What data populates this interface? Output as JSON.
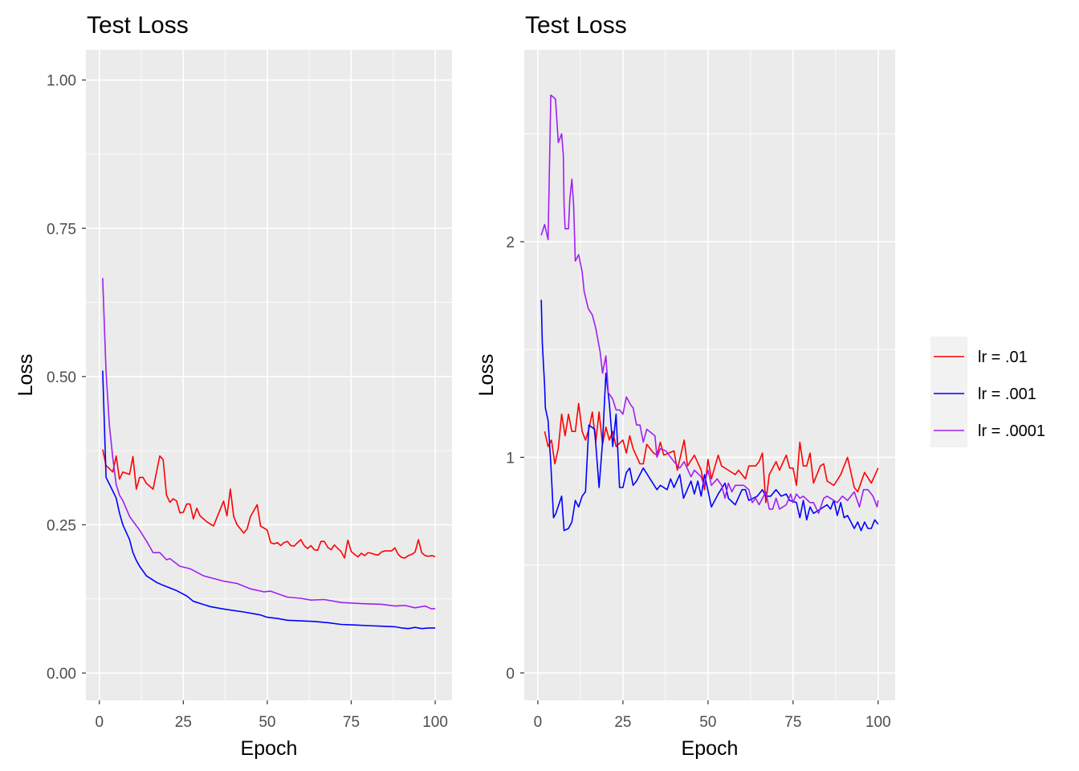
{
  "legend": {
    "items": [
      {
        "label": "lr = .01",
        "color": "#FF0000"
      },
      {
        "label": "lr = .001",
        "color": "#0000FF"
      },
      {
        "label": "lr = .0001",
        "color": "#A020F0"
      }
    ]
  },
  "chart_data": [
    {
      "type": "line",
      "title": "Test Loss",
      "xlabel": "Epoch",
      "ylabel": "Loss",
      "xlim": [
        -4,
        105
      ],
      "ylim": [
        -0.046,
        1.051
      ],
      "xticks": [
        0,
        25,
        50,
        75,
        100
      ],
      "xtick_labels": [
        "0",
        "25",
        "50",
        "75",
        "100"
      ],
      "yticks": [
        0,
        0.25,
        0.5,
        0.75,
        1.0
      ],
      "ytick_labels": [
        "0.00",
        "0.25",
        "0.50",
        "0.75",
        "1.00"
      ],
      "grid": true,
      "legend": "none",
      "series": [
        {
          "name": "lr = .01",
          "color": "#FF0000",
          "x": [
            1,
            2,
            4,
            5,
            6,
            7,
            9,
            10,
            11,
            12,
            13,
            14,
            16,
            18,
            19,
            20,
            21,
            22,
            23,
            24,
            25,
            26,
            27,
            28,
            29,
            30,
            32,
            34,
            37,
            38,
            39,
            40,
            41,
            43,
            44,
            45,
            47,
            48,
            50,
            51,
            52,
            53,
            54,
            55,
            56,
            57,
            58,
            59,
            60,
            61,
            62,
            63,
            64,
            65,
            66,
            67,
            68,
            69,
            70,
            71,
            72,
            73,
            74,
            75,
            76,
            77,
            78,
            79,
            80,
            81,
            82,
            83,
            84,
            85,
            86,
            87,
            88,
            89,
            90,
            91,
            92,
            93,
            94,
            95,
            96,
            97,
            98,
            99,
            100
          ],
          "y": [
            0.377,
            0.35,
            0.339,
            0.366,
            0.327,
            0.339,
            0.335,
            0.365,
            0.31,
            0.33,
            0.33,
            0.32,
            0.31,
            0.366,
            0.36,
            0.3,
            0.288,
            0.294,
            0.29,
            0.27,
            0.271,
            0.285,
            0.285,
            0.26,
            0.278,
            0.265,
            0.255,
            0.248,
            0.29,
            0.265,
            0.31,
            0.264,
            0.25,
            0.236,
            0.243,
            0.264,
            0.284,
            0.248,
            0.241,
            0.22,
            0.218,
            0.22,
            0.215,
            0.22,
            0.222,
            0.215,
            0.214,
            0.22,
            0.225,
            0.215,
            0.21,
            0.215,
            0.208,
            0.207,
            0.222,
            0.222,
            0.212,
            0.208,
            0.216,
            0.21,
            0.205,
            0.194,
            0.224,
            0.205,
            0.2,
            0.196,
            0.202,
            0.198,
            0.203,
            0.202,
            0.2,
            0.199,
            0.204,
            0.206,
            0.206,
            0.206,
            0.211,
            0.2,
            0.195,
            0.194,
            0.198,
            0.2,
            0.204,
            0.225,
            0.203,
            0.198,
            0.197,
            0.198,
            0.196
          ]
        },
        {
          "name": "lr = .001",
          "color": "#0000FF",
          "x": [
            1,
            2,
            4,
            5,
            6,
            7,
            9,
            10,
            11,
            12,
            14,
            17,
            19,
            23,
            26,
            28,
            33,
            37,
            43,
            48,
            50,
            53,
            56,
            60,
            64,
            68,
            72,
            76,
            80,
            84,
            88,
            90,
            92,
            94,
            96,
            98,
            100
          ],
          "y": [
            0.51,
            0.33,
            0.307,
            0.295,
            0.27,
            0.25,
            0.225,
            0.203,
            0.19,
            0.18,
            0.164,
            0.153,
            0.148,
            0.139,
            0.13,
            0.121,
            0.112,
            0.108,
            0.103,
            0.098,
            0.094,
            0.092,
            0.089,
            0.088,
            0.087,
            0.085,
            0.082,
            0.081,
            0.08,
            0.079,
            0.078,
            0.076,
            0.075,
            0.077,
            0.075,
            0.076,
            0.076
          ]
        },
        {
          "name": "lr = .0001",
          "color": "#A020F0",
          "x": [
            1,
            2,
            3,
            4,
            5,
            6,
            7,
            9,
            12,
            14,
            16,
            18,
            20,
            21,
            24,
            27,
            31,
            37,
            41,
            45,
            49,
            51,
            56,
            60,
            63,
            67,
            72,
            78,
            84,
            88,
            91,
            94,
            97,
            99,
            100
          ],
          "y": [
            0.666,
            0.508,
            0.417,
            0.363,
            0.318,
            0.3,
            0.291,
            0.264,
            0.241,
            0.223,
            0.203,
            0.203,
            0.191,
            0.193,
            0.18,
            0.176,
            0.164,
            0.155,
            0.151,
            0.142,
            0.137,
            0.138,
            0.128,
            0.126,
            0.123,
            0.124,
            0.119,
            0.117,
            0.116,
            0.113,
            0.114,
            0.11,
            0.113,
            0.108,
            0.109
          ]
        }
      ]
    },
    {
      "type": "line",
      "title": "Test Loss",
      "xlabel": "Epoch",
      "ylabel": "Loss",
      "xlim": [
        -4,
        105
      ],
      "ylim": [
        -0.127,
        2.89
      ],
      "xticks": [
        0,
        25,
        50,
        75,
        100
      ],
      "xtick_labels": [
        "0",
        "25",
        "50",
        "75",
        "100"
      ],
      "yticks": [
        0,
        1,
        2
      ],
      "ytick_labels": [
        "0",
        "1",
        "2"
      ],
      "grid": true,
      "legend": "right",
      "series": [
        {
          "name": "lr = .01",
          "color": "#FF0000",
          "x": [
            2,
            3,
            4,
            5,
            6,
            7,
            8,
            9,
            10,
            11,
            12,
            13,
            14,
            15,
            16,
            17,
            18,
            19,
            20,
            21,
            22,
            23,
            25,
            26,
            27,
            28,
            30,
            31,
            32,
            34,
            35,
            36,
            37,
            40,
            41,
            43,
            44,
            46,
            48,
            49,
            50,
            51,
            53,
            54,
            56,
            58,
            59,
            61,
            62,
            64,
            65,
            66,
            67,
            68,
            70,
            71,
            73,
            74,
            75,
            76,
            77,
            78,
            79,
            80,
            81,
            83,
            84,
            85,
            87,
            89,
            91,
            93,
            94,
            96,
            98,
            100
          ],
          "y": [
            1.12,
            1.05,
            1.08,
            0.97,
            1.04,
            1.2,
            1.1,
            1.2,
            1.12,
            1.12,
            1.25,
            1.12,
            1.08,
            1.13,
            1.21,
            1.07,
            1.21,
            1.06,
            1.14,
            1.08,
            1.12,
            1.05,
            1.08,
            1.02,
            1.1,
            1.04,
            0.97,
            0.97,
            1.06,
            1.02,
            1.01,
            1.07,
            1.01,
            1.03,
            0.94,
            1.08,
            0.96,
            1.01,
            0.94,
            0.85,
            0.99,
            0.9,
            1.01,
            0.96,
            0.94,
            0.92,
            0.94,
            0.9,
            0.96,
            0.96,
            0.98,
            1.02,
            0.79,
            0.92,
            0.98,
            0.94,
            1.01,
            0.95,
            0.95,
            0.87,
            1.07,
            0.96,
            0.96,
            1.02,
            0.88,
            0.96,
            0.97,
            0.89,
            0.87,
            0.92,
            1.0,
            0.86,
            0.84,
            0.93,
            0.88,
            0.95
          ]
        },
        {
          "name": "lr = .001",
          "color": "#0000FF",
          "x": [
            1,
            1.3,
            2,
            2.2,
            3,
            3.8,
            4.6,
            5.3,
            7,
            7.7,
            9,
            10,
            11,
            12,
            13,
            14,
            15,
            16.7,
            18,
            19,
            20,
            21,
            22,
            23,
            24,
            25,
            26,
            27,
            28,
            29,
            31,
            33,
            35,
            36,
            38,
            39,
            40,
            41.7,
            42.8,
            45,
            46,
            47,
            48,
            49,
            51,
            53,
            55,
            56,
            58,
            60,
            61,
            62,
            64.5,
            66,
            67,
            68.4,
            70,
            71.5,
            73,
            74,
            76,
            77,
            78,
            79,
            80,
            81,
            83,
            85,
            86,
            87,
            88,
            89,
            90,
            91,
            93,
            94,
            95,
            96,
            97,
            98,
            99,
            100
          ],
          "y": [
            1.73,
            1.53,
            1.33,
            1.23,
            1.17,
            0.97,
            0.72,
            0.74,
            0.82,
            0.66,
            0.67,
            0.7,
            0.8,
            0.77,
            0.82,
            0.84,
            1.15,
            1.13,
            0.86,
            1.07,
            1.39,
            1.25,
            1.05,
            1.2,
            0.86,
            0.86,
            0.93,
            0.95,
            0.87,
            0.89,
            0.95,
            0.9,
            0.85,
            0.87,
            0.85,
            0.9,
            0.86,
            0.92,
            0.81,
            0.89,
            0.83,
            0.89,
            0.82,
            0.92,
            0.77,
            0.83,
            0.88,
            0.81,
            0.78,
            0.85,
            0.85,
            0.8,
            0.82,
            0.85,
            0.82,
            0.82,
            0.85,
            0.82,
            0.83,
            0.8,
            0.79,
            0.72,
            0.8,
            0.71,
            0.77,
            0.74,
            0.76,
            0.78,
            0.76,
            0.8,
            0.73,
            0.79,
            0.72,
            0.73,
            0.67,
            0.7,
            0.66,
            0.7,
            0.67,
            0.67,
            0.71,
            0.69
          ]
        },
        {
          "name": "lr = .0001",
          "color": "#A020F0",
          "x": [
            1,
            2,
            3,
            3.8,
            4.6,
            5.2,
            6,
            7,
            7.5,
            7.7,
            8,
            9,
            9.4,
            10,
            10.5,
            11,
            12,
            13,
            13.6,
            14.8,
            16,
            17,
            18.3,
            19,
            20,
            20.7,
            22,
            23,
            24,
            25,
            26,
            27.4,
            28,
            29,
            30,
            31,
            32,
            34.4,
            35,
            36,
            37.6,
            40,
            41.7,
            43,
            45,
            46,
            48,
            48.8,
            50,
            51,
            52.7,
            54,
            55,
            56,
            57,
            58,
            60.5,
            62,
            63,
            64,
            65,
            67,
            68,
            69,
            70,
            71,
            73,
            74.3,
            75,
            76,
            77,
            78,
            80,
            81,
            82.5,
            84,
            85,
            88,
            89.5,
            91,
            93,
            94.5,
            95.7,
            97,
            98.5,
            99.7,
            100
          ],
          "y": [
            2.03,
            2.08,
            2.01,
            2.68,
            2.67,
            2.66,
            2.46,
            2.5,
            2.4,
            2.17,
            2.06,
            2.06,
            2.2,
            2.29,
            2.17,
            1.91,
            1.94,
            1.86,
            1.77,
            1.69,
            1.66,
            1.6,
            1.49,
            1.39,
            1.47,
            1.3,
            1.27,
            1.22,
            1.22,
            1.2,
            1.28,
            1.24,
            1.23,
            1.15,
            1.15,
            1.07,
            1.13,
            1.1,
            1.0,
            1.04,
            1.03,
            0.98,
            0.95,
            0.98,
            0.91,
            0.94,
            0.91,
            0.87,
            0.94,
            0.87,
            0.9,
            0.87,
            0.81,
            0.88,
            0.84,
            0.87,
            0.87,
            0.85,
            0.79,
            0.81,
            0.78,
            0.84,
            0.76,
            0.76,
            0.81,
            0.76,
            0.78,
            0.83,
            0.79,
            0.83,
            0.81,
            0.82,
            0.79,
            0.79,
            0.74,
            0.81,
            0.82,
            0.79,
            0.82,
            0.8,
            0.84,
            0.77,
            0.85,
            0.85,
            0.82,
            0.77,
            0.8
          ]
        }
      ]
    }
  ]
}
